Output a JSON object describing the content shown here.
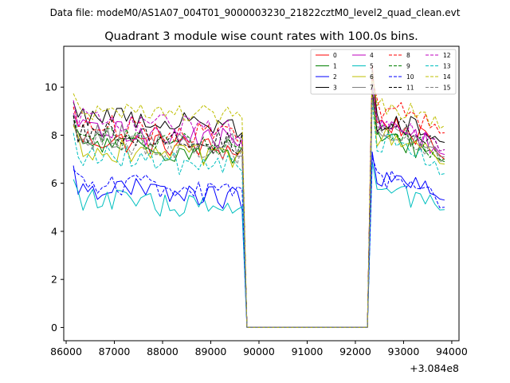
{
  "figure": {
    "suptitle": "Data file: modeM0/AS1A07_004T01_9000003230_21822cztM0_level2_quad_clean.evt"
  },
  "chart_data": {
    "type": "line",
    "title": "Quadrant 3 module wise count rates with 100.0s bins.",
    "xlabel": "",
    "ylabel": "",
    "x_offset_label": "+3.084e8",
    "x_range": [
      85950,
      94150
    ],
    "y_range": [
      -0.55,
      11.7
    ],
    "x_ticks": [
      86000,
      87000,
      88000,
      89000,
      90000,
      91000,
      92000,
      93000,
      94000
    ],
    "x_tick_labels": [
      "86000",
      "87000",
      "88000",
      "89000",
      "90000",
      "91000",
      "92000",
      "93000",
      "94000"
    ],
    "y_ticks": [
      0,
      2,
      4,
      6,
      8,
      10
    ],
    "y_tick_labels": [
      "0",
      "2",
      "4",
      "6",
      "8",
      "10"
    ],
    "legend_position": "top-right",
    "segments": {
      "seg1": {
        "x_start": 86150,
        "dx": 100,
        "count": 36
      },
      "drop": [
        {
          "x": 89650,
          "y_from_last": true
        },
        {
          "x": 89750,
          "y": 0
        }
      ],
      "gap": {
        "x_start": 89750,
        "x_end": 92250,
        "y": 0
      },
      "seg2": {
        "x_start": 92350,
        "dx": 100,
        "count": 16
      }
    },
    "series": [
      {
        "name": "0",
        "color": "#ff0000",
        "dash": "solid",
        "level1": 7.7,
        "peak": 10.9,
        "level2": 8.5,
        "end": 7.0
      },
      {
        "name": "1",
        "color": "#008000",
        "dash": "solid",
        "level1": 7.5,
        "peak": 9.8,
        "level2": 7.8,
        "end": 6.9
      },
      {
        "name": "2",
        "color": "#0000ff",
        "dash": "solid",
        "level1": 5.7,
        "peak": 7.3,
        "level2": 6.1,
        "end": 5.3
      },
      {
        "name": "3",
        "color": "#000000",
        "dash": "solid",
        "level1": 8.7,
        "peak": 10.7,
        "level2": 8.6,
        "end": 7.7
      },
      {
        "name": "4",
        "color": "#bf00bf",
        "dash": "solid",
        "level1": 8.1,
        "peak": 10.1,
        "level2": 8.3,
        "end": 7.2
      },
      {
        "name": "5",
        "color": "#00bfbf",
        "dash": "solid",
        "level1": 5.2,
        "peak": 6.9,
        "level2": 5.6,
        "end": 4.9
      },
      {
        "name": "6",
        "color": "#bfbf00",
        "dash": "solid",
        "level1": 7.3,
        "peak": 9.7,
        "level2": 7.9,
        "end": 6.8
      },
      {
        "name": "7",
        "color": "#808080",
        "dash": "solid",
        "level1": 7.9,
        "peak": 9.6,
        "level2": 8.2,
        "end": 7.1
      },
      {
        "name": "8",
        "color": "#ff0000",
        "dash": "dashed",
        "level1": 8.3,
        "peak": 10.4,
        "level2": 9.1,
        "end": 8.1
      },
      {
        "name": "9",
        "color": "#008000",
        "dash": "dashed",
        "level1": 7.8,
        "peak": 9.9,
        "level2": 8.1,
        "end": 7.0
      },
      {
        "name": "10",
        "color": "#0000ff",
        "dash": "dashed",
        "level1": 5.9,
        "peak": 7.1,
        "level2": 6.2,
        "end": 5.0
      },
      {
        "name": "11",
        "color": "#000000",
        "dash": "dashed",
        "level1": 8.0,
        "peak": 10.2,
        "level2": 8.4,
        "end": 7.4
      },
      {
        "name": "12",
        "color": "#bf00bf",
        "dash": "dashed",
        "level1": 8.5,
        "peak": 10.0,
        "level2": 8.5,
        "end": 7.4
      },
      {
        "name": "13",
        "color": "#00bfbf",
        "dash": "dashed",
        "level1": 7.0,
        "peak": 9.4,
        "level2": 7.7,
        "end": 6.4
      },
      {
        "name": "14",
        "color": "#bfbf00",
        "dash": "dashed",
        "level1": 9.0,
        "peak": 10.6,
        "level2": 9.2,
        "end": 8.4
      },
      {
        "name": "15",
        "color": "#808080",
        "dash": "dashed",
        "level1": 7.6,
        "peak": 9.5,
        "level2": 8.0,
        "end": 7.0
      }
    ]
  }
}
